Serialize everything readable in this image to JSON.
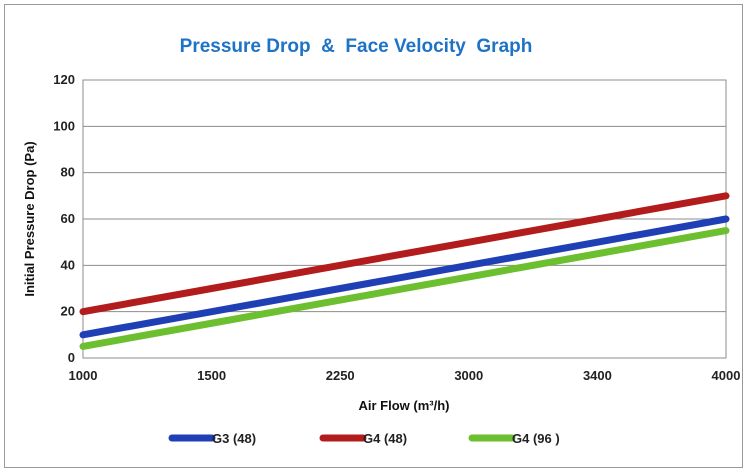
{
  "chart_data": {
    "type": "line",
    "title": "Pressure Drop  &  Face Velocity  Graph",
    "xlabel": "Air Flow (m³/h)",
    "ylabel": "Initial Pressure Drop (Pa)",
    "categories": [
      "1000",
      "1500",
      "2250",
      "3000",
      "3400",
      "4000"
    ],
    "ylim": [
      0,
      120
    ],
    "yticks": [
      0,
      20,
      40,
      60,
      80,
      100,
      120
    ],
    "grid": true,
    "legend_position": "bottom",
    "series": [
      {
        "name": "G3 (48)",
        "color": "#1f3fb5",
        "values": [
          10,
          20,
          30,
          40,
          50,
          60
        ]
      },
      {
        "name": "G4 (48)",
        "color": "#b31c1c",
        "values": [
          20,
          30,
          40,
          50,
          60,
          70
        ]
      },
      {
        "name": "G4 (96 )",
        "color": "#6cbf2e",
        "values": [
          5,
          15,
          25,
          35,
          45,
          55
        ]
      }
    ]
  }
}
